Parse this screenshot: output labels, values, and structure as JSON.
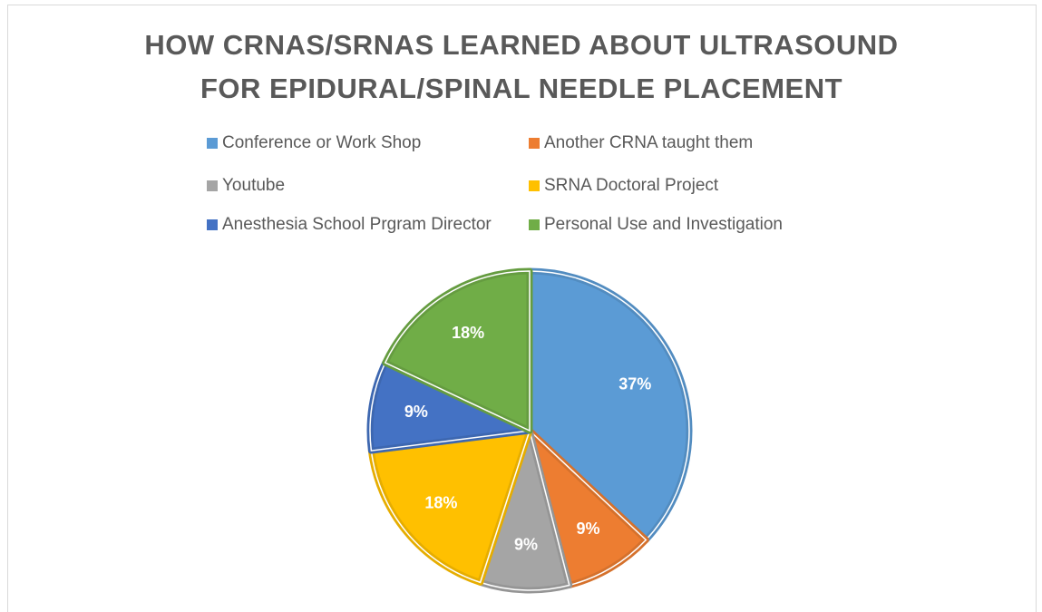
{
  "chart_data": {
    "type": "pie",
    "title": [
      "HOW CRNAS/SRNAS LEARNED ABOUT ULTRASOUND",
      "FOR EPIDURAL/SPINAL NEEDLE PLACEMENT"
    ],
    "categories": [
      "Conference or Work Shop",
      "Another CRNA taught them",
      "Youtube",
      "SRNA Doctoral Project",
      "Anesthesia School Prgram Director",
      "Personal Use and Investigation"
    ],
    "values": [
      37,
      9,
      9,
      18,
      9,
      18
    ],
    "value_labels": [
      "37%",
      "9%",
      "9%",
      "18%",
      "9%",
      "18%"
    ],
    "colors": [
      "#5b9bd5",
      "#ed7d31",
      "#a5a5a5",
      "#ffc000",
      "#4472c4",
      "#70ad47"
    ],
    "legend": "top"
  }
}
